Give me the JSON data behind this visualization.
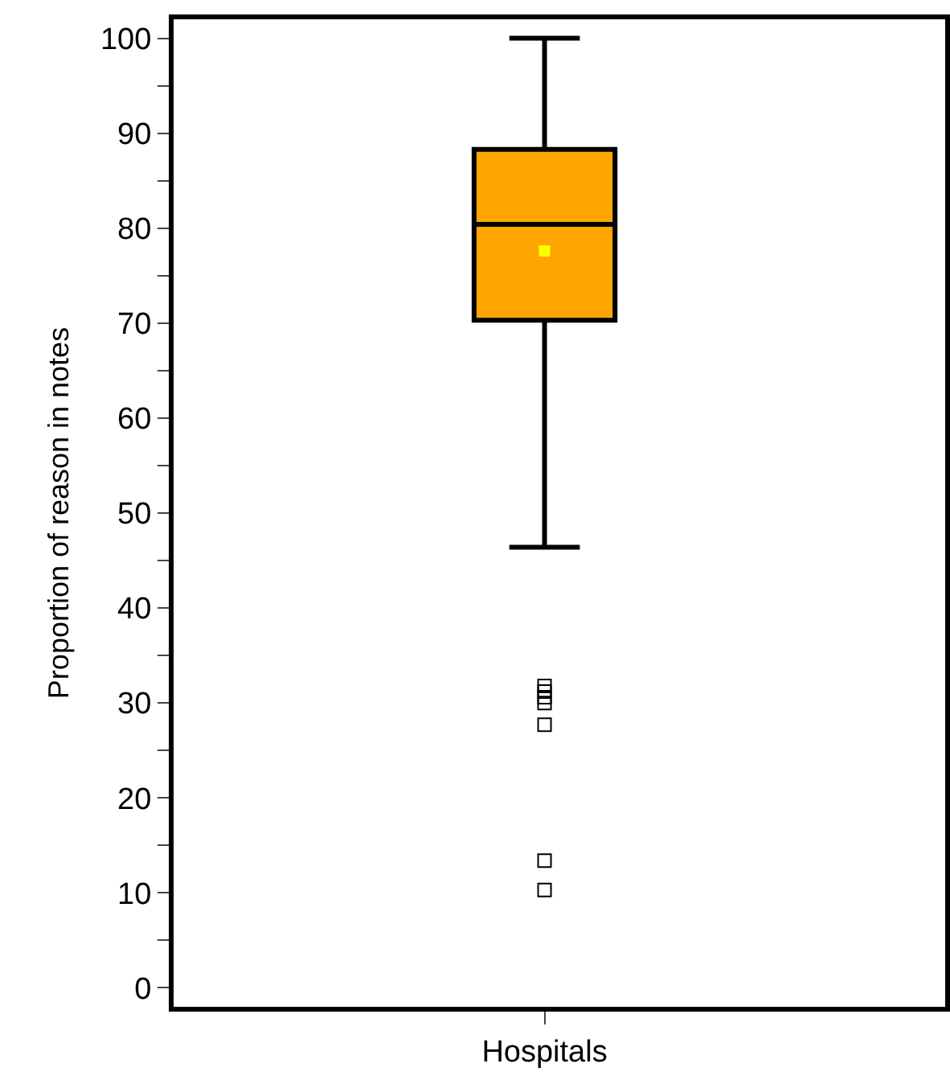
{
  "chart_data": {
    "type": "box",
    "ylabel": "Proportion of reason in notes",
    "categories": [
      "Hospitals"
    ],
    "series": [
      {
        "color": "#ffa500",
        "boxes": [
          {
            "low": 46.4,
            "q1": 70.3,
            "median": 80.4,
            "q3": 88.3,
            "high": 100,
            "mean": 77.6,
            "outliers": [
              31.8,
              31.2,
              30.6,
              30.0,
              27.7,
              13.4,
              10.3
            ]
          }
        ]
      }
    ],
    "ylim": [
      -2,
      102
    ],
    "yticks": [
      0,
      {
        "value": 5,
        "label": null
      },
      10,
      {
        "value": 15,
        "label": null
      },
      20,
      {
        "value": 25,
        "label": null
      },
      30,
      {
        "value": 35,
        "label": null
      },
      40,
      {
        "value": 45,
        "label": null
      },
      50,
      {
        "value": 55,
        "label": null
      },
      60,
      {
        "value": 65,
        "label": null
      },
      70,
      {
        "value": 75,
        "label": null
      },
      80,
      {
        "value": 85,
        "label": null
      },
      90,
      {
        "value": 95,
        "label": null
      },
      100
    ]
  }
}
